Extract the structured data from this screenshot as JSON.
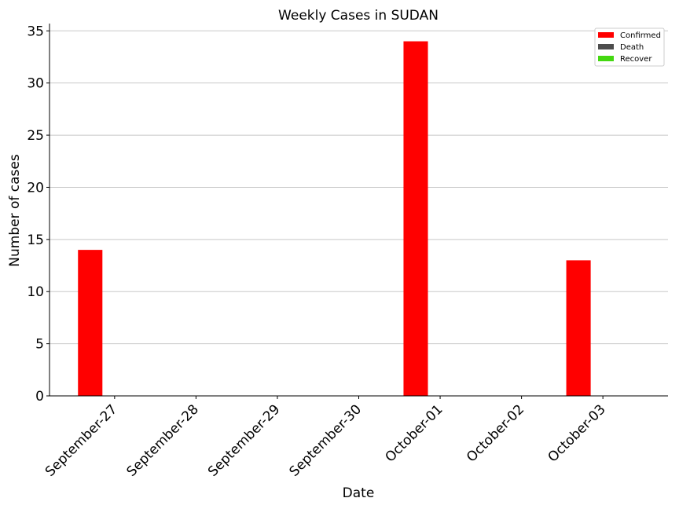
{
  "chart_data": {
    "type": "bar",
    "title": "Weekly Cases in SUDAN",
    "xlabel": "Date",
    "ylabel": "Number of cases",
    "categories": [
      "September-27",
      "September-28",
      "September-29",
      "September-30",
      "October-01",
      "October-02",
      "October-03"
    ],
    "series": [
      {
        "name": "Confirmed",
        "color": "#ff0000",
        "values": [
          14,
          0,
          0,
          0,
          34,
          0,
          13
        ]
      },
      {
        "name": "Death",
        "color": "#4d4d4d",
        "values": [
          0,
          0,
          0,
          0,
          0,
          0,
          0
        ]
      },
      {
        "name": "Recover",
        "color": "#44d811",
        "values": [
          0,
          0,
          0,
          0,
          0,
          0,
          0
        ]
      }
    ],
    "ylim": [
      0,
      35.7
    ],
    "yticks": [
      "0",
      "5",
      "10",
      "15",
      "20",
      "25",
      "30",
      "35"
    ],
    "grid": "horizontal",
    "legend_position": "top-right",
    "x_tick_rotation": -45
  }
}
